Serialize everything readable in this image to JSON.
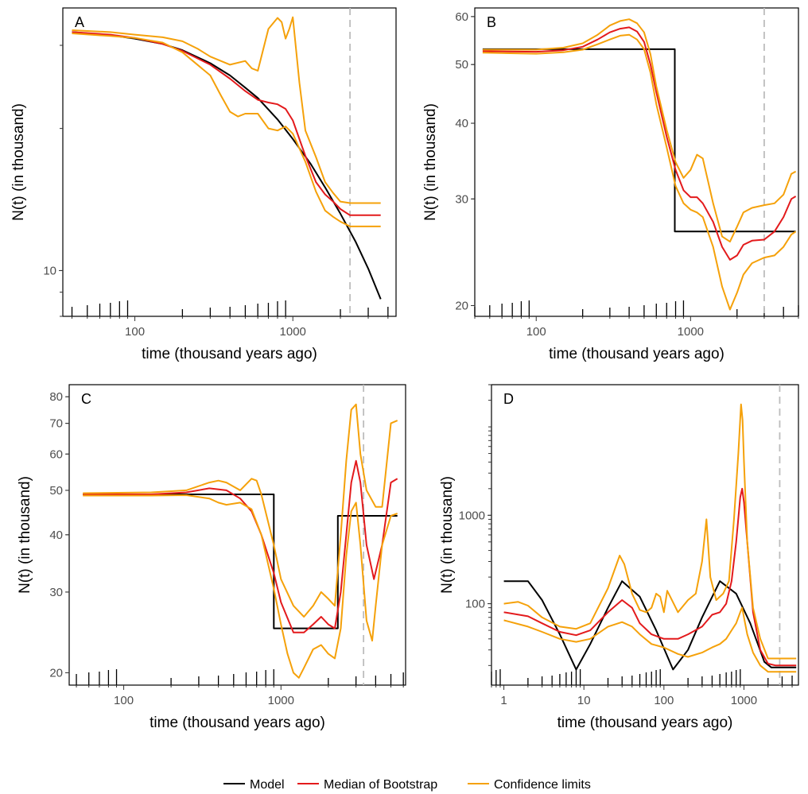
{
  "chart_data": [
    {
      "type": "line",
      "panel": "A",
      "xlabel": "time (thousand years ago)",
      "ylabel": "N(t) (in thousand)",
      "xscale": "log",
      "yscale": "log",
      "xlim": [
        35,
        4500
      ],
      "ylim": [
        8.0,
        36
      ],
      "xticks": [
        100,
        1000
      ],
      "yticks": [
        10
      ],
      "vline": 2300,
      "series": [
        {
          "name": "Model",
          "color": "#000000",
          "x": [
            40,
            70,
            100,
            150,
            200,
            300,
            400,
            500,
            600,
            800,
            1000,
            1300,
            1600,
            2000,
            2500,
            3000,
            3600
          ],
          "y": [
            32,
            31.5,
            31,
            30.2,
            29.3,
            27.5,
            25.9,
            24.4,
            23.2,
            20.9,
            19.0,
            16.8,
            15.0,
            13.2,
            11.5,
            10.1,
            8.7
          ]
        },
        {
          "name": "Median of Bootstrap",
          "color": "#e31a1c",
          "x": [
            40,
            70,
            100,
            150,
            200,
            300,
            400,
            500,
            600,
            700,
            800,
            900,
            1000,
            1200,
            1400,
            1600,
            1800,
            2000,
            2300,
            2600,
            3600
          ],
          "y": [
            32,
            31.6,
            31.1,
            30.2,
            29.2,
            27.3,
            25.5,
            24.0,
            23.0,
            22.7,
            22.5,
            22.0,
            20.8,
            17.5,
            15.4,
            14.5,
            14.0,
            13.5,
            13.1,
            13.1,
            13.1
          ]
        },
        {
          "name": "Confidence limits (upper)",
          "color": "#f5a10a",
          "x": [
            40,
            70,
            100,
            150,
            200,
            250,
            300,
            400,
            500,
            550,
            600,
            700,
            800,
            850,
            900,
            950,
            1000,
            1100,
            1200,
            1400,
            1600,
            1800,
            2000,
            2300,
            2600,
            3600
          ],
          "y": [
            32.3,
            32.0,
            31.6,
            31.2,
            30.6,
            29.5,
            28.4,
            27.3,
            27.8,
            26.8,
            26.5,
            32.5,
            34.3,
            33.6,
            31.0,
            32.5,
            34.4,
            25.0,
            19.8,
            17.4,
            15.4,
            14.6,
            14.0,
            13.9,
            13.9,
            13.9
          ]
        },
        {
          "name": "Confidence limits (lower)",
          "color": "#f5a10a",
          "x": [
            40,
            70,
            100,
            150,
            200,
            300,
            350,
            400,
            450,
            500,
            600,
            700,
            800,
            900,
            1000,
            1200,
            1400,
            1600,
            1800,
            2000,
            2300,
            2600,
            3600
          ],
          "y": [
            31.8,
            31.4,
            31.1,
            30.4,
            29.0,
            25.9,
            23.5,
            21.7,
            21.2,
            21.5,
            21.5,
            20.0,
            19.8,
            20.2,
            19.5,
            17.0,
            14.7,
            13.4,
            13.0,
            12.7,
            12.4,
            12.4,
            12.4
          ]
        }
      ]
    },
    {
      "type": "line",
      "panel": "B",
      "xlabel": "time (thousand years ago)",
      "ylabel": "N(t) (in thousand)",
      "xscale": "log",
      "yscale": "log",
      "xlim": [
        40,
        5000
      ],
      "ylim": [
        19.2,
        62
      ],
      "xticks": [
        100,
        1000
      ],
      "yticks": [
        20,
        30,
        40,
        50,
        60
      ],
      "vline": 3000,
      "series": [
        {
          "name": "Model",
          "color": "#000000",
          "x": [
            45,
            790,
            790,
            4800
          ],
          "y": [
            53,
            53,
            26.5,
            26.5
          ]
        },
        {
          "name": "Median of Bootstrap",
          "color": "#e31a1c",
          "x": [
            45,
            100,
            150,
            200,
            250,
            300,
            350,
            400,
            450,
            500,
            550,
            600,
            700,
            800,
            900,
            1000,
            1100,
            1200,
            1400,
            1600,
            1800,
            2000,
            2200,
            2500,
            3000,
            3500,
            4000,
            4500,
            4800
          ],
          "y": [
            52.6,
            52.5,
            52.8,
            53.5,
            55.0,
            56.5,
            57.3,
            57.6,
            56.7,
            54.5,
            50.0,
            45.0,
            38.0,
            33.5,
            31.0,
            30.2,
            30.2,
            29.5,
            27.5,
            25.0,
            23.8,
            24.2,
            25.2,
            25.6,
            25.7,
            26.5,
            28.0,
            30.0,
            30.3
          ]
        },
        {
          "name": "Confidence limits (upper)",
          "color": "#f5a10a",
          "x": [
            45,
            100,
            150,
            200,
            250,
            300,
            350,
            400,
            450,
            500,
            550,
            600,
            700,
            800,
            900,
            1000,
            1100,
            1200,
            1400,
            1600,
            1800,
            2000,
            2200,
            2500,
            3000,
            3500,
            4000,
            4500,
            4800
          ],
          "y": [
            52.9,
            52.9,
            53.3,
            54.2,
            56.0,
            58.0,
            59.0,
            59.4,
            58.5,
            56.5,
            52.0,
            46.0,
            39.0,
            34.5,
            32.5,
            33.5,
            35.5,
            35.0,
            29.5,
            26.0,
            25.5,
            27.0,
            28.5,
            29.0,
            29.3,
            29.5,
            30.5,
            33.0,
            33.3
          ]
        },
        {
          "name": "Confidence limits (lower)",
          "color": "#f5a10a",
          "x": [
            45,
            100,
            150,
            200,
            250,
            300,
            350,
            400,
            450,
            500,
            550,
            600,
            700,
            800,
            900,
            1000,
            1100,
            1200,
            1400,
            1600,
            1800,
            2000,
            2200,
            2500,
            3000,
            3500,
            4000,
            4500,
            4800
          ],
          "y": [
            52.3,
            52.1,
            52.4,
            52.9,
            54.0,
            55.0,
            55.8,
            56.0,
            55.0,
            53.0,
            48.5,
            43.0,
            36.5,
            31.5,
            29.5,
            28.8,
            28.5,
            28.0,
            25.0,
            21.5,
            19.7,
            21.0,
            22.5,
            23.5,
            24.0,
            24.2,
            25.0,
            26.2,
            26.5
          ]
        }
      ]
    },
    {
      "type": "line",
      "panel": "C",
      "xlabel": "time (thousand years ago)",
      "ylabel": "N(t) (in thousand)",
      "xscale": "log",
      "yscale": "log",
      "xlim": [
        45,
        6200
      ],
      "ylim": [
        18.8,
        85
      ],
      "xticks": [
        100,
        1000
      ],
      "yticks": [
        20,
        30,
        40,
        50,
        60,
        70,
        80
      ],
      "vline": 3350,
      "series": [
        {
          "name": "Model",
          "color": "#000000",
          "x": [
            55,
            900,
            900,
            2300,
            2300,
            5500
          ],
          "y": [
            49,
            49,
            25,
            25,
            44,
            44
          ]
        },
        {
          "name": "Median of Bootstrap",
          "color": "#e31a1c",
          "x": [
            55,
            150,
            250,
            350,
            450,
            550,
            650,
            750,
            900,
            1000,
            1200,
            1400,
            1600,
            1800,
            2000,
            2200,
            2400,
            2600,
            2800,
            3000,
            3200,
            3500,
            3900,
            4400,
            5000,
            5500
          ],
          "y": [
            49,
            49,
            49.5,
            50.5,
            50.0,
            48.0,
            45.0,
            40.0,
            33.0,
            28.5,
            24.5,
            24.5,
            25.5,
            26.5,
            25.5,
            25.0,
            30.0,
            40.0,
            52.0,
            58.0,
            52.0,
            38.0,
            32.0,
            38.0,
            52.0,
            53.0
          ]
        },
        {
          "name": "Confidence limits (upper)",
          "color": "#f5a10a",
          "x": [
            55,
            150,
            250,
            350,
            400,
            450,
            550,
            650,
            700,
            750,
            900,
            1000,
            1200,
            1400,
            1600,
            1800,
            2000,
            2200,
            2400,
            2600,
            2800,
            3000,
            3200,
            3500,
            4000,
            4400,
            5000,
            5500
          ],
          "y": [
            49.3,
            49.5,
            50.0,
            52.0,
            52.5,
            52.0,
            50.0,
            53.0,
            52.5,
            49.0,
            38.0,
            32.0,
            28.0,
            26.5,
            28.0,
            30.0,
            29.0,
            28.0,
            40.0,
            58.0,
            75.0,
            77.0,
            60.0,
            50.0,
            46.0,
            46.0,
            70.0,
            71.0
          ]
        },
        {
          "name": "Confidence limits (lower)",
          "color": "#f5a10a",
          "x": [
            55,
            150,
            250,
            350,
            400,
            450,
            550,
            650,
            750,
            900,
            1000,
            1100,
            1200,
            1300,
            1400,
            1600,
            1800,
            2000,
            2200,
            2400,
            2600,
            2800,
            3000,
            3200,
            3500,
            3800,
            4000,
            4400,
            5000,
            5500
          ],
          "y": [
            48.7,
            48.7,
            48.8,
            48.0,
            47.0,
            46.5,
            47.0,
            45.5,
            40.0,
            30.5,
            25.5,
            22.0,
            20.0,
            19.5,
            20.5,
            22.5,
            23.0,
            22.0,
            21.5,
            25.0,
            36.0,
            45.0,
            47.0,
            38.0,
            26.0,
            23.5,
            28.0,
            38.0,
            44.0,
            44.5
          ]
        }
      ]
    },
    {
      "type": "line",
      "panel": "D",
      "xlabel": "time (thousand years ago)",
      "ylabel": "N(t) (in thousand)",
      "xscale": "log",
      "yscale": "log",
      "xlim": [
        0.7,
        4800
      ],
      "ylim": [
        12,
        30000
      ],
      "xticks": [
        1,
        10,
        100,
        1000
      ],
      "yticks": [
        100,
        1000
      ],
      "vline": 2800,
      "series": [
        {
          "name": "Model",
          "color": "#000000",
          "x": [
            1,
            2,
            3,
            5,
            8,
            12,
            20,
            30,
            50,
            80,
            130,
            200,
            300,
            500,
            800,
            1200,
            1800,
            2200,
            4500
          ],
          "y": [
            180,
            180,
            110,
            45,
            18,
            35,
            90,
            180,
            120,
            50,
            18,
            30,
            70,
            180,
            130,
            60,
            22,
            19,
            19
          ]
        },
        {
          "name": "Median of Bootstrap",
          "color": "#e31a1c",
          "x": [
            1,
            2,
            3,
            5,
            8,
            12,
            20,
            30,
            40,
            50,
            70,
            100,
            150,
            200,
            300,
            400,
            500,
            600,
            700,
            800,
            900,
            950,
            1000,
            1100,
            1300,
            1600,
            2000,
            2500,
            4500
          ],
          "y": [
            80,
            72,
            60,
            48,
            44,
            50,
            80,
            110,
            90,
            60,
            45,
            40,
            40,
            45,
            55,
            75,
            80,
            100,
            180,
            500,
            1600,
            2000,
            1400,
            500,
            80,
            30,
            21,
            20,
            20
          ]
        },
        {
          "name": "Confidence limits (upper)",
          "color": "#f5a10a",
          "x": [
            1,
            1.5,
            2,
            3,
            5,
            8,
            12,
            20,
            28,
            32,
            40,
            50,
            60,
            70,
            80,
            90,
            100,
            110,
            120,
            150,
            200,
            250,
            300,
            340,
            380,
            450,
            550,
            650,
            750,
            850,
            920,
            960,
            1000,
            1100,
            1300,
            1600,
            2000,
            4500
          ],
          "y": [
            100,
            105,
            95,
            70,
            55,
            52,
            60,
            150,
            350,
            280,
            130,
            85,
            80,
            90,
            130,
            120,
            80,
            140,
            120,
            80,
            110,
            130,
            300,
            900,
            200,
            110,
            130,
            180,
            900,
            5000,
            18000,
            12000,
            4000,
            500,
            90,
            40,
            24,
            24
          ]
        },
        {
          "name": "Confidence limits (lower)",
          "color": "#f5a10a",
          "x": [
            1,
            2,
            3,
            5,
            8,
            12,
            20,
            30,
            40,
            50,
            70,
            100,
            150,
            200,
            300,
            400,
            500,
            600,
            700,
            800,
            900,
            950,
            1000,
            1100,
            1300,
            1600,
            2000,
            2500,
            4500
          ],
          "y": [
            65,
            55,
            48,
            40,
            37,
            40,
            55,
            62,
            55,
            45,
            35,
            32,
            27,
            25,
            28,
            32,
            35,
            40,
            50,
            60,
            80,
            90,
            70,
            45,
            28,
            20,
            17,
            17,
            17
          ]
        }
      ]
    }
  ],
  "legend": {
    "placement": "bottom-center",
    "entries": [
      {
        "label": "Model",
        "color": "#000000"
      },
      {
        "label": "Median of Bootstrap",
        "color": "#e31a1c"
      },
      {
        "label": "Confidence limits",
        "color": "#f5a10a"
      }
    ]
  }
}
